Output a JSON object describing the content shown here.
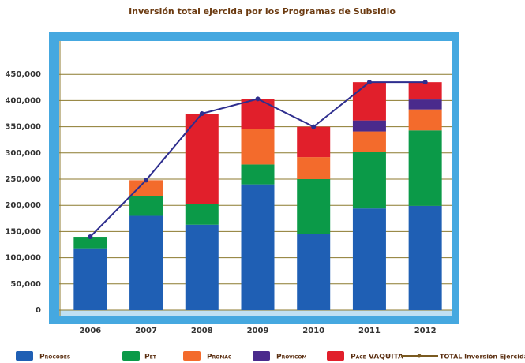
{
  "chart_data": {
    "type": "bar",
    "stacked": true,
    "title": "Inversión total ejercida por los Programas de Subsidio",
    "categories": [
      "2006",
      "2007",
      "2008",
      "2009",
      "2010",
      "2011",
      "2012"
    ],
    "series": [
      {
        "name": "Procodes",
        "color": "#1f5fb4",
        "values": [
          118000,
          180000,
          163000,
          240000,
          146000,
          194000,
          199000
        ]
      },
      {
        "name": "Pet",
        "color": "#0b9a48",
        "values": [
          22000,
          37000,
          39000,
          38000,
          104000,
          108000,
          144000
        ]
      },
      {
        "name": "Promac",
        "color": "#f36b2c",
        "values": [
          null,
          31000,
          null,
          68000,
          42000,
          39000,
          40000
        ]
      },
      {
        "name": "Provicom",
        "color": "#4a2a8c",
        "values": [
          null,
          null,
          null,
          null,
          null,
          21000,
          19000
        ]
      },
      {
        "name": "Pace VAQUITA",
        "color": "#e11f2b",
        "values": [
          null,
          null,
          173000,
          57000,
          58000,
          73000,
          33000
        ]
      }
    ],
    "line": {
      "name": "TOTAL Inversión Ejercida (miles de pesos)",
      "color": "#2e2e8e",
      "marker_color": "#7a5a20",
      "values": [
        140000,
        248000,
        375000,
        403000,
        350000,
        435000,
        435000
      ]
    },
    "ylim": [
      0,
      500000
    ],
    "yticks": [
      0,
      {
        "value": 50000,
        "label": "50,000"
      },
      {
        "value": 100000,
        "label": "100,000"
      },
      {
        "value": 150000,
        "label": "150,000"
      },
      {
        "value": 200000,
        "label": "200,000"
      },
      {
        "value": 250000,
        "label": "250,000"
      },
      {
        "value": 300000,
        "label": "300,000"
      },
      {
        "value": 350000,
        "label": "350,000"
      },
      {
        "value": 400000,
        "label": "400,000"
      },
      {
        "value": 450000,
        "label": "450,000"
      }
    ],
    "grid": true
  }
}
